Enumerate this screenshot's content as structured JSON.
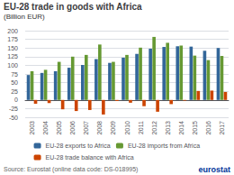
{
  "chart_data": {
    "type": "bar",
    "title": "EU-28 trade in goods with Africa",
    "subtitle": "(Billion EUR)",
    "categories": [
      "2003",
      "2004",
      "2005",
      "2006",
      "2007",
      "2008",
      "2009",
      "2010",
      "2011",
      "2012",
      "2013",
      "2014",
      "2015",
      "2016",
      "2017"
    ],
    "series": [
      {
        "name": "EU-28 exports to Africa",
        "color": "#336699",
        "values": [
          72,
          78,
          83,
          93,
          101,
          118,
          107,
          122,
          133,
          148,
          153,
          155,
          154,
          142,
          150
        ]
      },
      {
        "name": "EU-28 imports from Africa",
        "color": "#669933",
        "values": [
          83,
          87,
          110,
          125,
          130,
          160,
          110,
          130,
          151,
          182,
          165,
          157,
          128,
          115,
          127
        ]
      },
      {
        "name": "EU-28 trade balance with Africa",
        "color": "#cc4400",
        "values": [
          -11,
          -9,
          -27,
          -32,
          -29,
          -42,
          -3,
          -8,
          -18,
          -34,
          -12,
          -2,
          26,
          27,
          23
        ]
      }
    ],
    "ylim": [
      -50,
      200
    ],
    "yticks": [
      200,
      175,
      150,
      125,
      100,
      75,
      50,
      25,
      0,
      -25,
      -50
    ],
    "grid": true,
    "legend": "bottom",
    "annotations": [
      "Source: Eurostat (online data code: DS-018995)",
      "eurostat"
    ]
  }
}
